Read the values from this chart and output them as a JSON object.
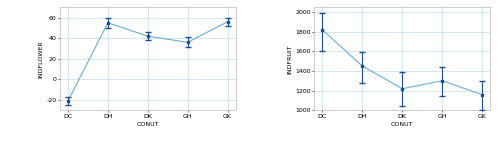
{
  "categories": [
    "DC",
    "DH",
    "DK",
    "GH",
    "GK"
  ],
  "left_ylabel": "INDFLOWER",
  "left_xlabel": "CONUT",
  "left_means": [
    -21,
    55,
    42,
    36,
    56
  ],
  "left_yerr_low": [
    4,
    5,
    4,
    5,
    4
  ],
  "left_yerr_high": [
    4,
    5,
    4,
    5,
    4
  ],
  "left_ylim": [
    -30,
    70
  ],
  "left_yticks": [
    -20,
    0,
    20,
    40,
    60
  ],
  "right_ylabel": "INDFRUIT",
  "right_xlabel": "CONUT",
  "right_means": [
    1820,
    1450,
    1220,
    1300,
    1160
  ],
  "right_yerr_low": [
    220,
    175,
    175,
    150,
    155
  ],
  "right_yerr_high": [
    175,
    140,
    170,
    145,
    140
  ],
  "right_ylim": [
    1000,
    2050
  ],
  "right_yticks": [
    1000,
    1200,
    1400,
    1600,
    1800,
    2000
  ],
  "line_color": "#6BAED6",
  "marker_color": "#1F4E8C",
  "bg_color": "#FFFFFF",
  "plot_bg_color": "#FFFFFF",
  "grid_color": "#C5DCF0"
}
